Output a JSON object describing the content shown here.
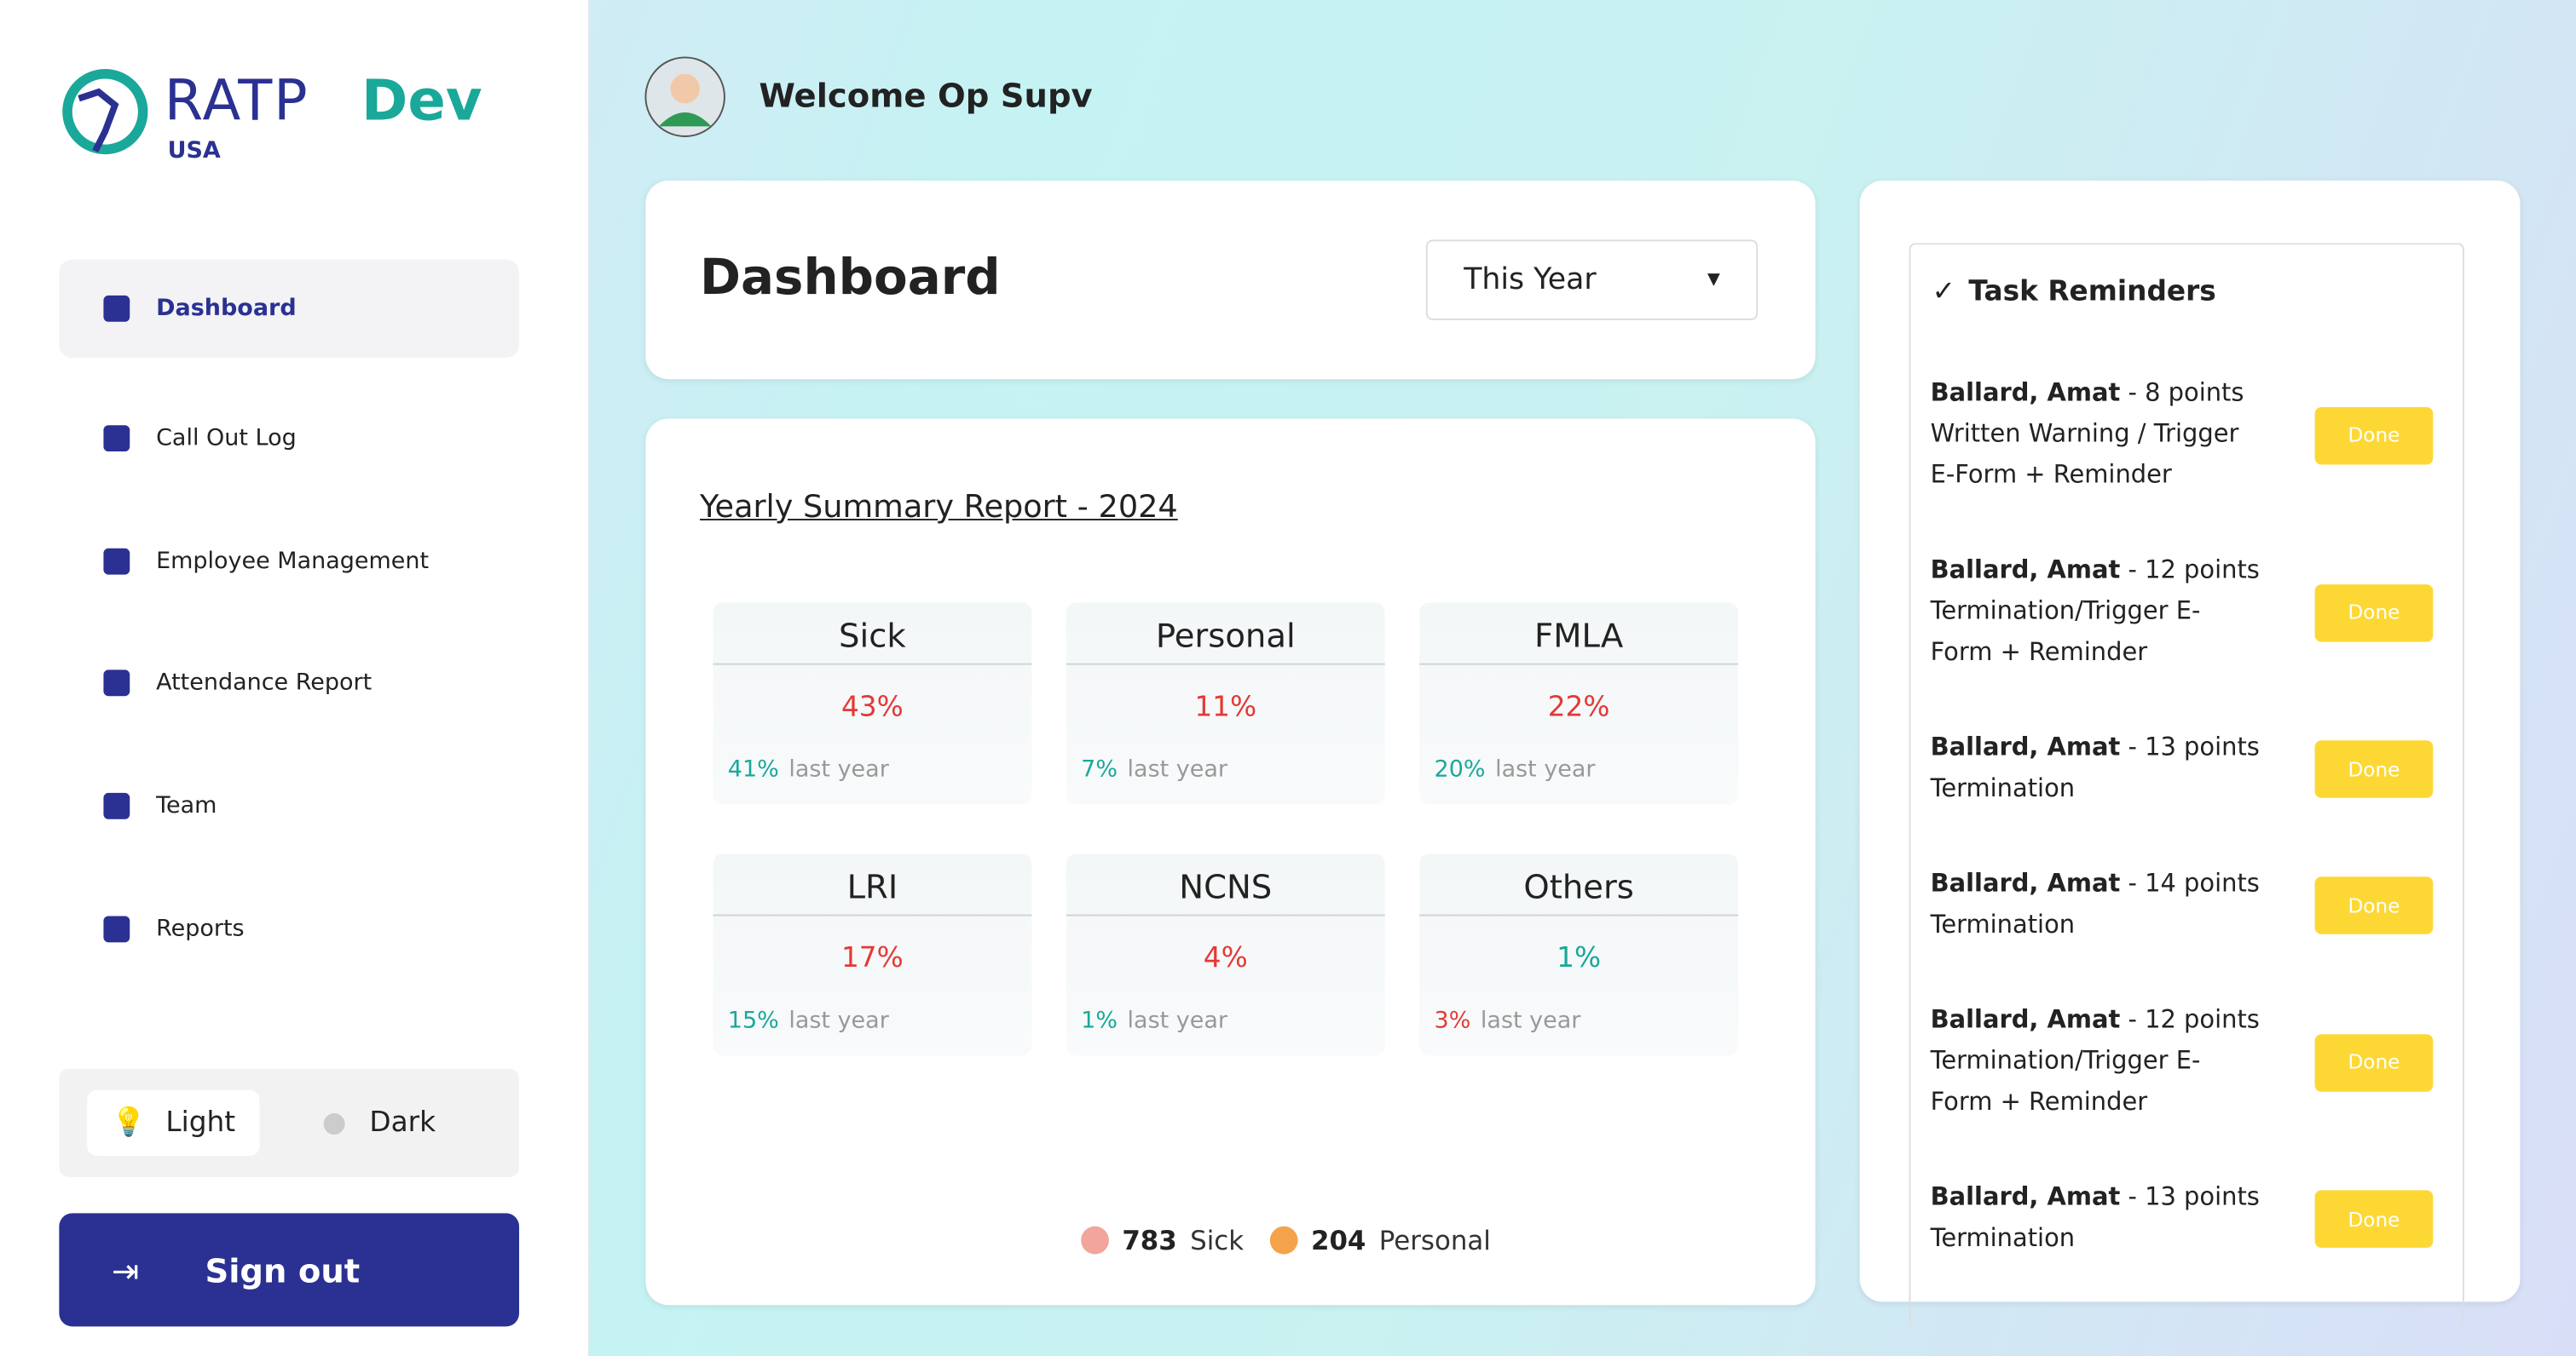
{
  "logo": {
    "name": "RATP",
    "suffix": "Dev",
    "region": "USA"
  },
  "nav": [
    "Dashboard",
    "Call Out Log",
    "Employee Management",
    "Attendance Report",
    "Team",
    "Reports"
  ],
  "theme": {
    "light": "Light",
    "dark": "Dark"
  },
  "sign_out": "Sign out",
  "welcome": "Welcome Op Supv",
  "dashboard": {
    "title": "Dashboard",
    "period": "This Year"
  },
  "summary": {
    "title": "Yearly Summary Report - 2024",
    "last_label": "last year",
    "cards": [
      {
        "name": "Sick",
        "value": "43%",
        "value_color": "#e53935",
        "last": "41%",
        "last_color": "#1aa89a"
      },
      {
        "name": "Personal",
        "value": "11%",
        "value_color": "#e53935",
        "last": "7%",
        "last_color": "#1aa89a"
      },
      {
        "name": "FMLA",
        "value": "22%",
        "value_color": "#e53935",
        "last": "20%",
        "last_color": "#1aa89a"
      },
      {
        "name": "LRI",
        "value": "17%",
        "value_color": "#e53935",
        "last": "15%",
        "last_color": "#1aa89a"
      },
      {
        "name": "NCNS",
        "value": "4%",
        "value_color": "#e53935",
        "last": "1%",
        "last_color": "#1aa89a"
      },
      {
        "name": "Others",
        "value": "1%",
        "value_color": "#1aa89a",
        "last": "3%",
        "last_color": "#e53935"
      }
    ],
    "legend": [
      {
        "count": "783",
        "label": "Sick",
        "color": "#f2a59b"
      },
      {
        "count": "204",
        "label": "Personal",
        "color": "#f5a34a"
      }
    ]
  },
  "tasks": {
    "title": "Task Reminders",
    "button": "Done",
    "items": [
      {
        "name": "Ballard, Amat",
        "points": " - 8 points",
        "lines": [
          "Written Warning / Trigger",
          "E-Form + Reminder"
        ]
      },
      {
        "name": "Ballard, Amat",
        "points": " - 12 points",
        "lines": [
          "Termination/Trigger E-",
          "Form + Reminder"
        ]
      },
      {
        "name": "Ballard, Amat",
        "points": " - 13 points",
        "lines": [
          "Termination"
        ]
      },
      {
        "name": "Ballard, Amat",
        "points": " - 14 points",
        "lines": [
          "Termination"
        ]
      },
      {
        "name": "Ballard, Amat",
        "points": " - 12 points",
        "lines": [
          "Termination/Trigger E-",
          "Form + Reminder"
        ]
      },
      {
        "name": "Ballard, Amat",
        "points": " - 13 points",
        "lines": [
          "Termination"
        ]
      }
    ]
  }
}
